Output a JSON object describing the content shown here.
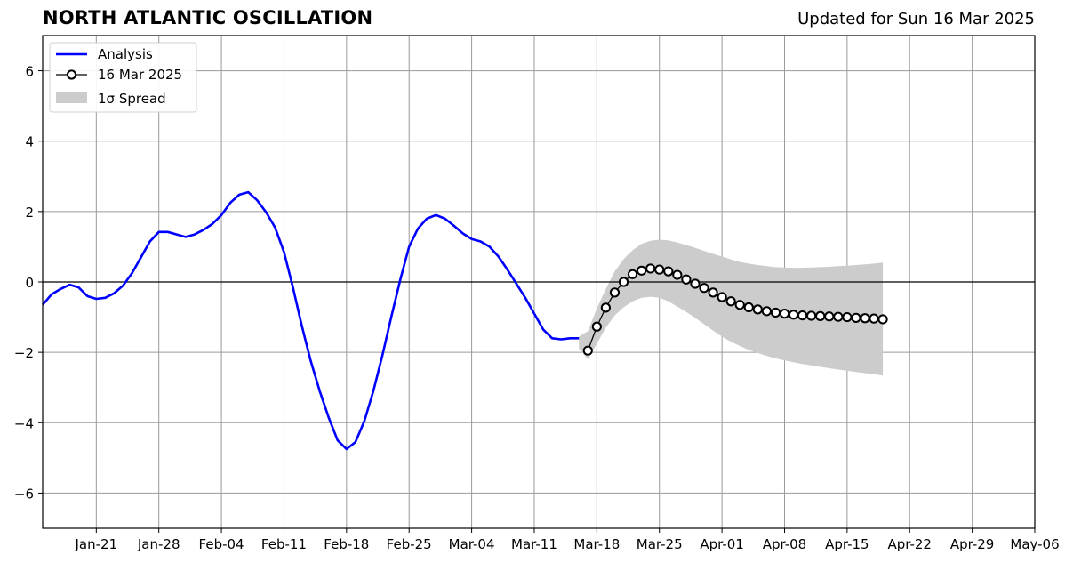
{
  "header": {
    "title": "NORTH ATLANTIC OSCILLATION",
    "updated": "Updated for Sun 16 Mar 2025"
  },
  "chart_data": {
    "type": "line",
    "title": "NORTH ATLANTIC OSCILLATION",
    "xlabel": "",
    "ylabel": "",
    "x_axis": "date",
    "xlim": [
      "2025-01-15",
      "2025-05-06"
    ],
    "ylim": [
      -7,
      7
    ],
    "grid": true,
    "legend_position": "top-left",
    "x_tick_labels": [
      "Jan-21",
      "Jan-28",
      "Feb-04",
      "Feb-11",
      "Feb-18",
      "Feb-25",
      "Mar-04",
      "Mar-11",
      "Mar-18",
      "Mar-25",
      "Apr-01",
      "Apr-08",
      "Apr-15",
      "Apr-22",
      "Apr-29",
      "May-06"
    ],
    "x_tick_dates": [
      "2025-01-21",
      "2025-01-28",
      "2025-02-04",
      "2025-02-11",
      "2025-02-18",
      "2025-02-25",
      "2025-03-04",
      "2025-03-11",
      "2025-03-18",
      "2025-03-25",
      "2025-04-01",
      "2025-04-08",
      "2025-04-15",
      "2025-04-22",
      "2025-04-29",
      "2025-05-06"
    ],
    "y_ticks": [
      -6,
      -4,
      -2,
      0,
      2,
      4,
      6
    ],
    "y_tick_labels": [
      "−6",
      "−4",
      "−2",
      "0",
      "2",
      "4",
      "6"
    ],
    "legend": [
      "Analysis",
      "16 Mar 2025",
      "1σ Spread"
    ],
    "colors": {
      "analysis": "#0000ff",
      "forecast_line": "#000000",
      "forecast_marker_fill": "#ffffff",
      "spread": "#cccccc",
      "grid": "#9a9a9a",
      "zero_line": "#000000"
    },
    "series": [
      {
        "name": "Analysis",
        "x": [
          "2025-01-15",
          "2025-01-16",
          "2025-01-17",
          "2025-01-18",
          "2025-01-19",
          "2025-01-20",
          "2025-01-21",
          "2025-01-22",
          "2025-01-23",
          "2025-01-24",
          "2025-01-25",
          "2025-01-26",
          "2025-01-27",
          "2025-01-28",
          "2025-01-29",
          "2025-01-30",
          "2025-01-31",
          "2025-02-01",
          "2025-02-02",
          "2025-02-03",
          "2025-02-04",
          "2025-02-05",
          "2025-02-06",
          "2025-02-07",
          "2025-02-08",
          "2025-02-09",
          "2025-02-10",
          "2025-02-11",
          "2025-02-12",
          "2025-02-13",
          "2025-02-14",
          "2025-02-15",
          "2025-02-16",
          "2025-02-17",
          "2025-02-18",
          "2025-02-19",
          "2025-02-20",
          "2025-02-21",
          "2025-02-22",
          "2025-02-23",
          "2025-02-24",
          "2025-02-25",
          "2025-02-26",
          "2025-02-27",
          "2025-02-28",
          "2025-03-01",
          "2025-03-02",
          "2025-03-03",
          "2025-03-04",
          "2025-03-05",
          "2025-03-06",
          "2025-03-07",
          "2025-03-08",
          "2025-03-09",
          "2025-03-10",
          "2025-03-11",
          "2025-03-12",
          "2025-03-13",
          "2025-03-14",
          "2025-03-15",
          "2025-03-16"
        ],
        "values": [
          -0.65,
          -0.35,
          -0.2,
          -0.08,
          -0.15,
          -0.4,
          -0.48,
          -0.45,
          -0.32,
          -0.1,
          0.25,
          0.7,
          1.15,
          1.42,
          1.42,
          1.35,
          1.28,
          1.35,
          1.48,
          1.65,
          1.9,
          2.25,
          2.48,
          2.55,
          2.32,
          1.98,
          1.55,
          0.85,
          -0.15,
          -1.25,
          -2.25,
          -3.1,
          -3.85,
          -4.5,
          -4.75,
          -4.55,
          -3.95,
          -3.1,
          -2.1,
          -1.0,
          0.05,
          1.0,
          1.52,
          1.8,
          1.9,
          1.8,
          1.6,
          1.38,
          1.22,
          1.15,
          1.0,
          0.72,
          0.35,
          -0.05,
          -0.45,
          -0.9,
          -1.35,
          -1.6,
          -1.63,
          -1.6,
          -1.6
        ]
      },
      {
        "name": "16 Mar 2025",
        "x": [
          "2025-03-17",
          "2025-03-18",
          "2025-03-19",
          "2025-03-20",
          "2025-03-21",
          "2025-03-22",
          "2025-03-23",
          "2025-03-24",
          "2025-03-25",
          "2025-03-26",
          "2025-03-27",
          "2025-03-28",
          "2025-03-29",
          "2025-03-30",
          "2025-03-31",
          "2025-04-01",
          "2025-04-02",
          "2025-04-03",
          "2025-04-04",
          "2025-04-05",
          "2025-04-06",
          "2025-04-07",
          "2025-04-08",
          "2025-04-09",
          "2025-04-10",
          "2025-04-11",
          "2025-04-12",
          "2025-04-13",
          "2025-04-14",
          "2025-04-15",
          "2025-04-16",
          "2025-04-17",
          "2025-04-18",
          "2025-04-19"
        ],
        "values": [
          -1.95,
          -1.27,
          -0.73,
          -0.3,
          0.0,
          0.22,
          0.32,
          0.38,
          0.35,
          0.3,
          0.2,
          0.07,
          -0.05,
          -0.17,
          -0.3,
          -0.43,
          -0.55,
          -0.65,
          -0.72,
          -0.78,
          -0.83,
          -0.87,
          -0.9,
          -0.93,
          -0.95,
          -0.96,
          -0.97,
          -0.98,
          -0.99,
          -1.0,
          -1.02,
          -1.03,
          -1.04,
          -1.06
        ]
      }
    ],
    "spread": {
      "name": "1σ Spread",
      "x": [
        "2025-03-16",
        "2025-03-17",
        "2025-03-18",
        "2025-03-19",
        "2025-03-20",
        "2025-03-21",
        "2025-03-22",
        "2025-03-23",
        "2025-03-24",
        "2025-03-25",
        "2025-03-26",
        "2025-03-27",
        "2025-03-28",
        "2025-03-29",
        "2025-03-30",
        "2025-03-31",
        "2025-04-01",
        "2025-04-02",
        "2025-04-03",
        "2025-04-04",
        "2025-04-05",
        "2025-04-06",
        "2025-04-07",
        "2025-04-08",
        "2025-04-09",
        "2025-04-10",
        "2025-04-11",
        "2025-04-12",
        "2025-04-13",
        "2025-04-14",
        "2025-04-15",
        "2025-04-16",
        "2025-04-17",
        "2025-04-18",
        "2025-04-19"
      ],
      "upper": [
        -1.55,
        -1.4,
        -0.75,
        -0.2,
        0.3,
        0.65,
        0.9,
        1.08,
        1.17,
        1.2,
        1.18,
        1.12,
        1.05,
        0.97,
        0.88,
        0.8,
        0.72,
        0.64,
        0.57,
        0.52,
        0.48,
        0.45,
        0.42,
        0.41,
        0.4,
        0.4,
        0.41,
        0.42,
        0.43,
        0.45,
        0.46,
        0.48,
        0.5,
        0.52,
        0.55
      ],
      "lower": [
        -1.9,
        -2.2,
        -1.75,
        -1.3,
        -0.95,
        -0.72,
        -0.55,
        -0.45,
        -0.42,
        -0.45,
        -0.55,
        -0.7,
        -0.85,
        -1.02,
        -1.2,
        -1.38,
        -1.55,
        -1.7,
        -1.82,
        -1.93,
        -2.02,
        -2.1,
        -2.17,
        -2.23,
        -2.28,
        -2.33,
        -2.37,
        -2.41,
        -2.45,
        -2.49,
        -2.52,
        -2.56,
        -2.59,
        -2.62,
        -2.66
      ]
    }
  }
}
